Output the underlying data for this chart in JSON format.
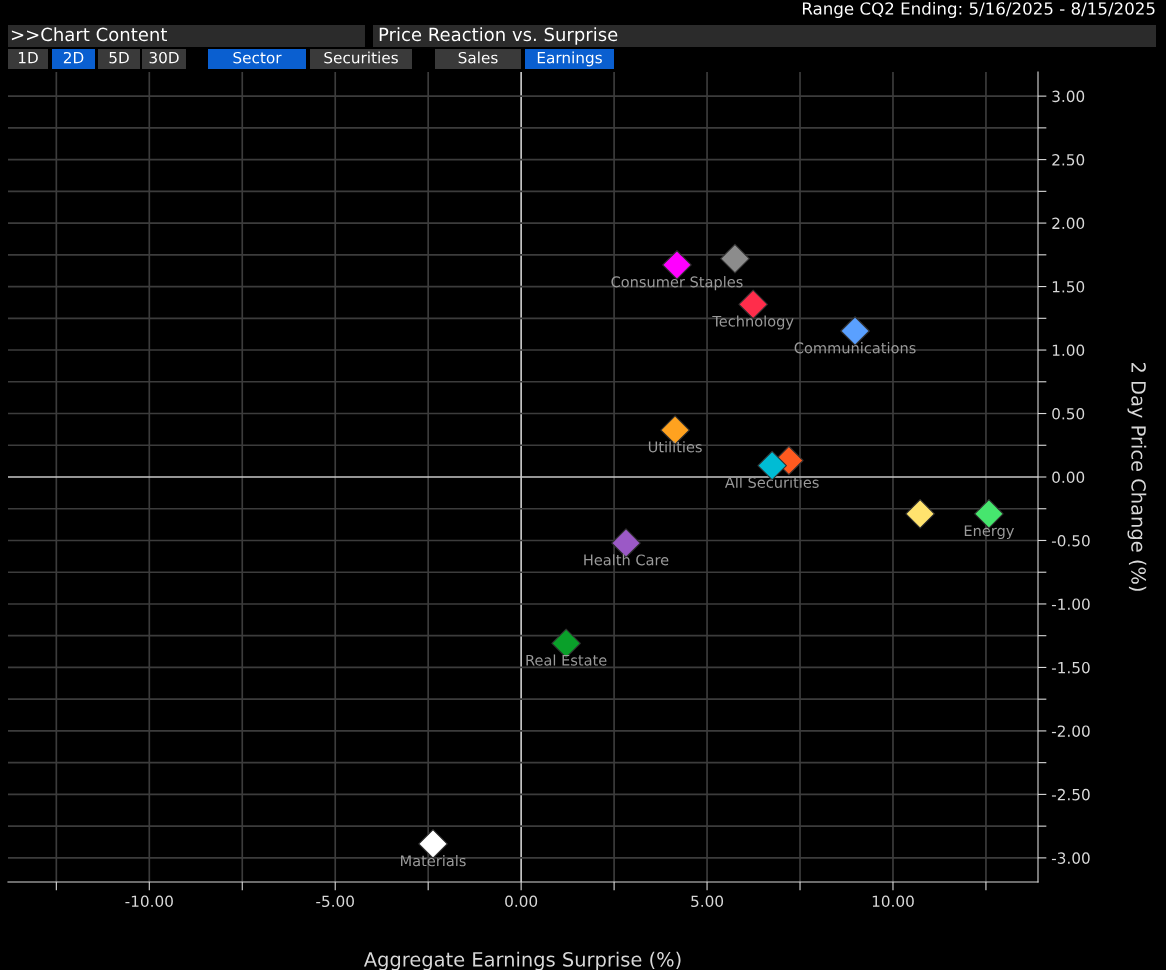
{
  "chart_data": {
    "type": "scatter",
    "title": "Price Reaction vs. Surprise",
    "subtitle": "Range CQ2 Ending: 5/16/2025 - 8/15/2025",
    "xlabel": "Aggregate Earnings Surprise (%)",
    "ylabel": "2 Day Price Change (%)",
    "annotations": [
      ">>Chart Content",
      "1D",
      "2D",
      "5D",
      "30D",
      "Sector",
      "Securities",
      "Sales",
      "Earnings"
    ],
    "marker": "diamond",
    "legend": false,
    "grid": true,
    "xlim": [
      -13.8,
      13.9
    ],
    "ylim": [
      -3.19,
      3.19
    ],
    "xticks": [
      {
        "value": -12.5,
        "label": null
      },
      {
        "value": -10,
        "label": "-10.00"
      },
      {
        "value": -7.5,
        "label": null
      },
      {
        "value": -5,
        "label": "-5.00"
      },
      {
        "value": -2.5,
        "label": null
      },
      {
        "value": 0,
        "label": "0.00"
      },
      {
        "value": 2.5,
        "label": null
      },
      {
        "value": 5,
        "label": "5.00"
      },
      {
        "value": 7.5,
        "label": null
      },
      {
        "value": 10,
        "label": "10.00"
      },
      {
        "value": 12.5,
        "label": null
      }
    ],
    "yticks": [
      {
        "value": -3,
        "label": "-3.00"
      },
      {
        "value": -2.75,
        "label": null
      },
      {
        "value": -2.5,
        "label": "-2.50"
      },
      {
        "value": -2.25,
        "label": null
      },
      {
        "value": -2,
        "label": "-2.00"
      },
      {
        "value": -1.75,
        "label": null
      },
      {
        "value": -1.5,
        "label": "-1.50"
      },
      {
        "value": -1.25,
        "label": null
      },
      {
        "value": -1,
        "label": "-1.00"
      },
      {
        "value": -0.75,
        "label": null
      },
      {
        "value": -0.5,
        "label": "-0.50"
      },
      {
        "value": -0.25,
        "label": null
      },
      {
        "value": 0,
        "label": "0.00"
      },
      {
        "value": 0.25,
        "label": null
      },
      {
        "value": 0.5,
        "label": "0.50"
      },
      {
        "value": 0.75,
        "label": null
      },
      {
        "value": 1,
        "label": "1.00"
      },
      {
        "value": 1.25,
        "label": null
      },
      {
        "value": 1.5,
        "label": "1.50"
      },
      {
        "value": 1.75,
        "label": null
      },
      {
        "value": 2,
        "label": "2.00"
      },
      {
        "value": 2.25,
        "label": null
      },
      {
        "value": 2.5,
        "label": "2.50"
      },
      {
        "value": 2.75,
        "label": null
      },
      {
        "value": 3,
        "label": "3.00"
      }
    ],
    "series": [
      {
        "name": "Consumer Staples",
        "color": "#ff00ff",
        "x": [
          4.19
        ],
        "values": [
          1.67
        ]
      },
      {
        "color": "#8c8c8c",
        "x": [
          5.75
        ],
        "values": [
          1.72
        ]
      },
      {
        "name": "Technology",
        "color": "#ff2d4b",
        "x": [
          6.24
        ],
        "values": [
          1.36
        ]
      },
      {
        "name": "Communications",
        "color": "#5aa0ff",
        "x": [
          8.98
        ],
        "values": [
          1.15
        ]
      },
      {
        "name": "Utilities",
        "color": "#ffa21f",
        "x": [
          4.14
        ],
        "values": [
          0.37
        ]
      },
      {
        "color": "#ff5a1f",
        "x": [
          7.2
        ],
        "values": [
          0.13
        ]
      },
      {
        "name": "All Securities",
        "color": "#00bcd4",
        "x": [
          6.75
        ],
        "values": [
          0.09
        ]
      },
      {
        "color": "#ffe36e",
        "x": [
          10.73
        ],
        "values": [
          -0.29
        ]
      },
      {
        "name": "Energy",
        "color": "#46e66e",
        "x": [
          12.58
        ],
        "values": [
          -0.29
        ]
      },
      {
        "name": "Health Care",
        "color": "#9b59c6",
        "x": [
          2.82
        ],
        "values": [
          -0.52
        ]
      },
      {
        "name": "Real Estate",
        "color": "#0aa02a",
        "x": [
          1.21
        ],
        "values": [
          -1.31
        ]
      },
      {
        "name": "Materials",
        "color": "#ffffff",
        "x": [
          -2.37
        ],
        "values": [
          -2.89
        ]
      }
    ]
  }
}
